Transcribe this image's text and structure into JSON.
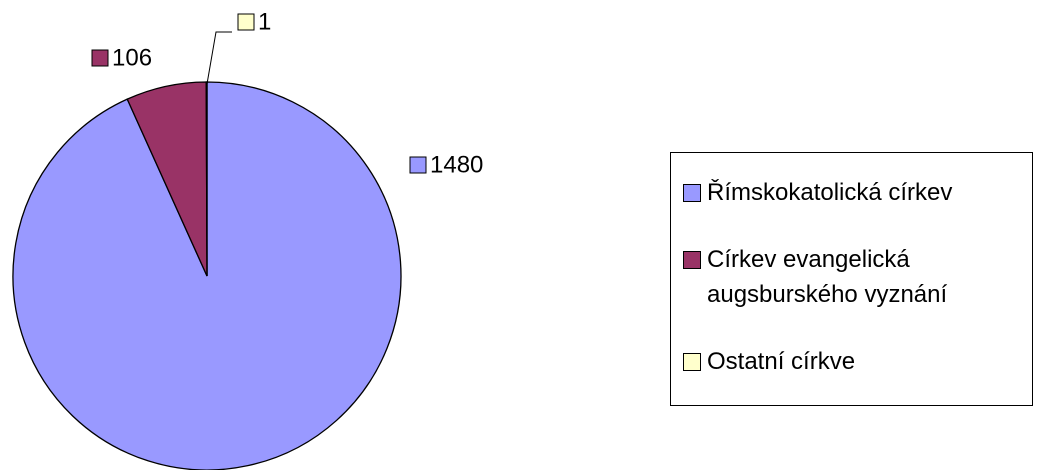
{
  "chart_data": {
    "type": "pie",
    "categories": [
      "Římskokatolická církev",
      "Církev evangelická augsburského vyznání",
      "Ostatní církve"
    ],
    "values": [
      1480,
      106,
      1
    ],
    "colors": [
      "#9999ff",
      "#993366",
      "#ffffcc"
    ],
    "legend": "right"
  }
}
